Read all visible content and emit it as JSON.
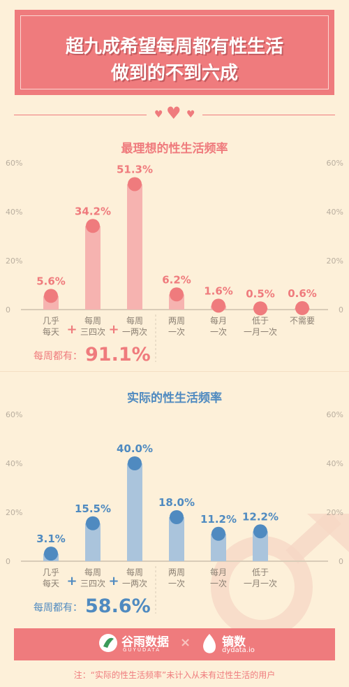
{
  "header": {
    "title_line1": "超九成希望每周都有性生活",
    "title_line2": "做到的不到六成"
  },
  "colors": {
    "pink": "#ef7b7d",
    "pink_bar": "#f6b3b0",
    "blue": "#4f8ac0",
    "blue_bar": "#aac4dc",
    "bg": "#fdf0d9"
  },
  "chart_data": [
    {
      "type": "bar",
      "title": "最理想的性生活频率",
      "categories": [
        "几乎\n每天",
        "每周\n三四次",
        "每周\n一两次",
        "两周\n一次",
        "每月\n一次",
        "低于\n一月一次",
        "不需要"
      ],
      "values": [
        5.6,
        34.2,
        51.3,
        6.2,
        1.6,
        0.5,
        0.6
      ],
      "value_labels": [
        "5.6%",
        "34.2%",
        "51.3%",
        "6.2%",
        "1.6%",
        "0.5%",
        "0.6%"
      ],
      "ylim": [
        0,
        60
      ],
      "yticks": [
        "60%",
        "40%",
        "20%",
        "0"
      ],
      "total_label": "每周都有：",
      "total_value": "91.1%",
      "plus": "+"
    },
    {
      "type": "bar",
      "title": "实际的性生活频率",
      "categories": [
        "几乎\n每天",
        "每周\n三四次",
        "每周\n一两次",
        "两周\n一次",
        "每月\n一次",
        "低于\n一月一次"
      ],
      "values": [
        3.1,
        15.5,
        40.0,
        18.0,
        11.2,
        12.2
      ],
      "value_labels": [
        "3.1%",
        "15.5%",
        "40.0%",
        "18.0%",
        "11.2%",
        "12.2%"
      ],
      "ylim": [
        0,
        60
      ],
      "yticks": [
        "60%",
        "40%",
        "20%",
        "0"
      ],
      "total_label": "每周都有：",
      "total_value": "58.6%",
      "plus": "+"
    }
  ],
  "footer": {
    "logo1": "谷雨数据",
    "logo1_sub": "GUYUDATA",
    "times": "×",
    "logo2": "镝数",
    "logo2_sub": "dydata.io",
    "note": "注：“实际的性生活频率”未计入从未有过性生活的用户"
  }
}
